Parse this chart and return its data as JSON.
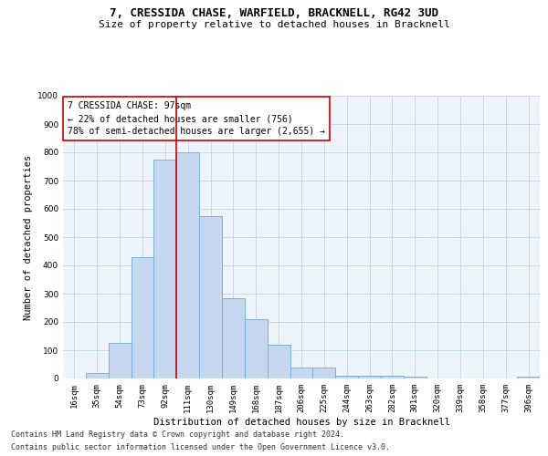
{
  "title": "7, CRESSIDA CHASE, WARFIELD, BRACKNELL, RG42 3UD",
  "subtitle": "Size of property relative to detached houses in Bracknell",
  "xlabel": "Distribution of detached houses by size in Bracknell",
  "ylabel": "Number of detached properties",
  "categories": [
    "16sqm",
    "35sqm",
    "54sqm",
    "73sqm",
    "92sqm",
    "111sqm",
    "130sqm",
    "149sqm",
    "168sqm",
    "187sqm",
    "206sqm",
    "225sqm",
    "244sqm",
    "263sqm",
    "282sqm",
    "301sqm",
    "320sqm",
    "339sqm",
    "358sqm",
    "377sqm",
    "396sqm"
  ],
  "values": [
    0,
    20,
    125,
    430,
    775,
    800,
    575,
    285,
    210,
    120,
    40,
    40,
    10,
    10,
    10,
    5,
    0,
    0,
    0,
    0,
    5
  ],
  "bar_color": "#c5d8f0",
  "bar_edge_color": "#7fafd4",
  "vline_x": 4.5,
  "vline_color": "#cc0000",
  "annotation_text": "7 CRESSIDA CHASE: 97sqm\n← 22% of detached houses are smaller (756)\n78% of semi-detached houses are larger (2,655) →",
  "annotation_box_color": "#ffffff",
  "annotation_box_edge_color": "#cc0000",
  "ylim": [
    0,
    1000
  ],
  "yticks": [
    0,
    100,
    200,
    300,
    400,
    500,
    600,
    700,
    800,
    900,
    1000
  ],
  "grid_color": "#c8d8e8",
  "bg_color": "#eef4fb",
  "footer_line1": "Contains HM Land Registry data © Crown copyright and database right 2024.",
  "footer_line2": "Contains public sector information licensed under the Open Government Licence v3.0.",
  "title_fontsize": 9,
  "subtitle_fontsize": 8,
  "axis_label_fontsize": 7.5,
  "tick_fontsize": 6.5,
  "annotation_fontsize": 7,
  "footer_fontsize": 6
}
